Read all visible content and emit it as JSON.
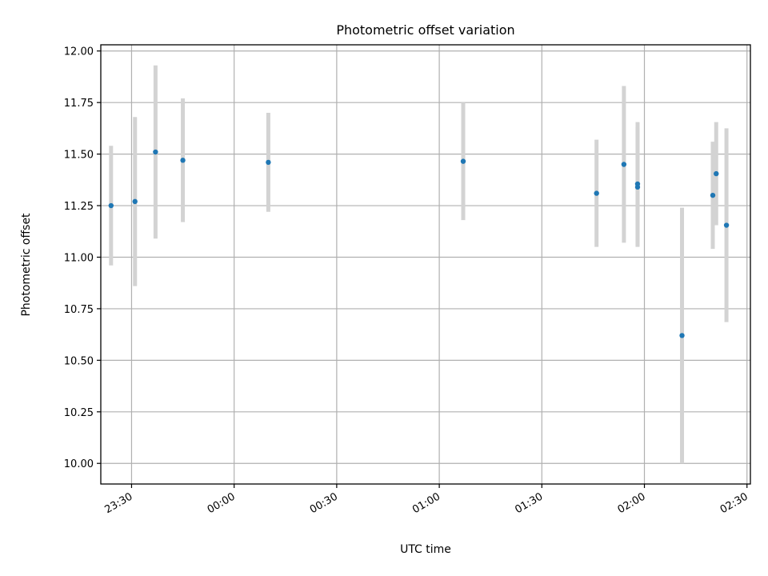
{
  "chart_data": {
    "type": "scatter",
    "title": "Photometric offset variation",
    "xlabel": "UTC time",
    "ylabel": "Photometric offset",
    "x_axis_type": "time",
    "x_ticks": [
      "23:30",
      "00:00",
      "00:30",
      "01:00",
      "01:30",
      "02:00",
      "02:30"
    ],
    "y_ticks": [
      "10.00",
      "10.25",
      "10.50",
      "10.75",
      "11.00",
      "11.25",
      "11.50",
      "11.75",
      "12.00"
    ],
    "xlim": [
      "23:21",
      "02:31"
    ],
    "ylim": [
      9.9,
      12.03
    ],
    "grid": true,
    "colors": {
      "point": "#1f77b4",
      "errorbar": "#d3d3d3",
      "grid": "#b0b0b0"
    },
    "series": [
      {
        "points": [
          {
            "x": "23:24",
            "y": 11.25,
            "yerr": 0.29
          },
          {
            "x": "23:31",
            "y": 11.27,
            "yerr": 0.41
          },
          {
            "x": "23:37",
            "y": 11.51,
            "yerr": 0.42
          },
          {
            "x": "23:45",
            "y": 11.47,
            "yerr": 0.3
          },
          {
            "x": "00:10",
            "y": 11.46,
            "yerr": 0.24
          },
          {
            "x": "01:07",
            "y": 11.465,
            "yerr": 0.285
          },
          {
            "x": "01:46",
            "y": 11.31,
            "yerr": 0.26
          },
          {
            "x": "01:54",
            "y": 11.45,
            "yerr": 0.38
          },
          {
            "x": "01:58",
            "y": 11.34,
            "yerr": 0.29
          },
          {
            "x": "01:58",
            "y": 11.355,
            "yerr": 0.3
          },
          {
            "x": "02:11",
            "y": 10.62,
            "yerr": 0.62
          },
          {
            "x": "02:20",
            "y": 11.3,
            "yerr": 0.26
          },
          {
            "x": "02:21",
            "y": 11.405,
            "yerr": 0.25
          },
          {
            "x": "02:24",
            "y": 11.155,
            "yerr": 0.47
          }
        ]
      }
    ]
  }
}
